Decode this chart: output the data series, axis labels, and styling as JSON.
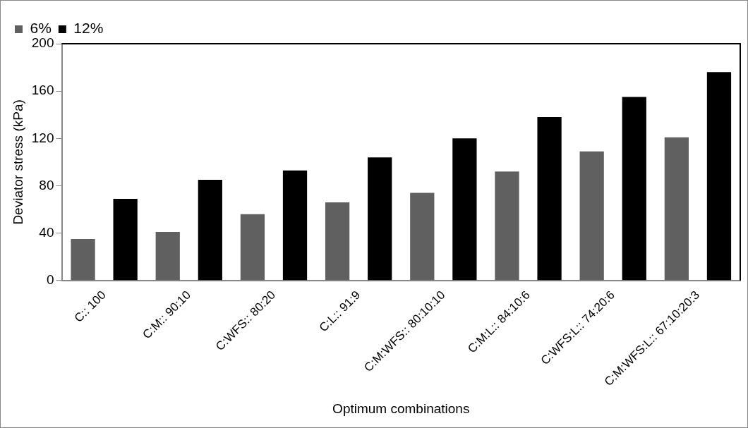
{
  "chart_data": {
    "type": "bar",
    "xlabel": "Optimum combinations",
    "ylabel": "Deviator stress (kPa)",
    "categories": [
      "C:: 100",
      "C:M:: 90:10",
      "C:WFS:: 80:20",
      "C:L:: 91:9",
      "C:M:WFS:: 80:10:10",
      "C:M:L:: 84:10:6",
      "C:WFS:L:: 74:20:6",
      "C:M:WFS:L:: 67:10:20:3"
    ],
    "series": [
      {
        "name": "6%",
        "color": "#606060",
        "values": [
          35,
          41,
          56,
          66,
          74,
          92,
          109,
          121
        ]
      },
      {
        "name": "12%",
        "color": "#000000",
        "values": [
          69,
          85,
          93,
          104,
          120,
          138,
          155,
          176
        ]
      }
    ],
    "ylim": [
      0,
      200
    ],
    "yticks": [
      0,
      40,
      80,
      120,
      160,
      200
    ],
    "grid": false,
    "legend": "top left"
  }
}
